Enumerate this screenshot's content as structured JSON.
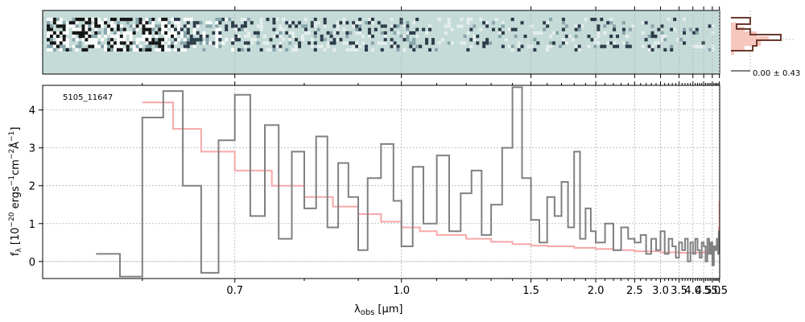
{
  "chart_data": {
    "type": "line",
    "object_label": "5105_11647",
    "xlabel_main": "λ",
    "xlabel_sub": "obs",
    "xlabel_unit": "[μm]",
    "ylabel": "f_λ [10^-20 ergs^-1 cm^-2 Å^-1]",
    "ylabel_parts": {
      "f": "f",
      "lambda_sub": "λ",
      "bracket_open": "[10",
      "exp1": "−20",
      "ergs": " ergs",
      "exp2": "−1",
      "cm": "cm",
      "exp3": "−2",
      "angstrom": "Å",
      "exp4": "−1",
      "bracket_close": "]"
    },
    "x_scale": "reciprocal",
    "xlim": [
      0.52,
      5.52
    ],
    "ylim": [
      -0.45,
      4.65
    ],
    "x_ticks": [
      0.7,
      1.0,
      1.5,
      2.0,
      2.5,
      3.0,
      3.5,
      4.0,
      4.5,
      5.0,
      5.5
    ],
    "x_tick_labels": [
      "0.7",
      "1.0",
      "1.5",
      "2.0",
      "2.5",
      "3.0",
      "3.5",
      "4.0",
      "4.5",
      "5.0",
      "5.5"
    ],
    "y_ticks": [
      0,
      1,
      2,
      3,
      4
    ],
    "y_tick_labels": [
      "0",
      "1",
      "2",
      "3",
      "4"
    ],
    "grid": true,
    "series": [
      {
        "role": "observed spectrum",
        "color": "#808080",
        "x": [
          0.56,
          0.58,
          0.6,
          0.62,
          0.64,
          0.66,
          0.68,
          0.7,
          0.72,
          0.74,
          0.76,
          0.78,
          0.8,
          0.82,
          0.84,
          0.86,
          0.88,
          0.9,
          0.92,
          0.95,
          0.98,
          1.0,
          1.03,
          1.06,
          1.1,
          1.14,
          1.18,
          1.22,
          1.26,
          1.3,
          1.35,
          1.4,
          1.45,
          1.5,
          1.55,
          1.6,
          1.65,
          1.7,
          1.75,
          1.8,
          1.85,
          1.9,
          1.95,
          2.0,
          2.1,
          2.2,
          2.3,
          2.4,
          2.5,
          2.6,
          2.7,
          2.8,
          2.9,
          3.0,
          3.1,
          3.2,
          3.3,
          3.4,
          3.5,
          3.6,
          3.7,
          3.8,
          3.9,
          4.0,
          4.1,
          4.2,
          4.3,
          4.4,
          4.5,
          4.6,
          4.7,
          4.8,
          4.9,
          5.0,
          5.1,
          5.2,
          5.3,
          5.4,
          5.45,
          5.5
        ],
        "y": [
          0.2,
          -0.4,
          3.8,
          4.5,
          2.0,
          -0.3,
          3.2,
          4.4,
          1.2,
          3.6,
          0.6,
          2.9,
          1.4,
          3.3,
          0.9,
          2.6,
          1.7,
          0.3,
          2.2,
          3.1,
          1.6,
          0.4,
          2.5,
          1.0,
          2.8,
          0.8,
          1.8,
          2.4,
          0.7,
          1.5,
          3.0,
          4.6,
          2.2,
          1.1,
          0.5,
          1.7,
          1.2,
          2.1,
          0.9,
          2.9,
          0.6,
          1.4,
          0.8,
          0.5,
          1.0,
          0.3,
          0.9,
          0.6,
          0.5,
          0.7,
          0.2,
          0.6,
          0.3,
          0.8,
          0.2,
          0.6,
          0.4,
          0.1,
          0.5,
          0.3,
          0.6,
          0.0,
          0.5,
          0.2,
          0.6,
          0.3,
          0.1,
          0.5,
          0.4,
          0.0,
          0.6,
          0.2,
          0.5,
          -0.1,
          0.4,
          0.3,
          0.6,
          0.2,
          0.8,
          0.3
        ]
      },
      {
        "role": "model",
        "color": "#f7a8a8",
        "x": [
          0.6,
          0.63,
          0.66,
          0.7,
          0.75,
          0.8,
          0.85,
          0.9,
          0.95,
          1.0,
          1.05,
          1.1,
          1.2,
          1.3,
          1.4,
          1.5,
          1.6,
          1.8,
          2.0,
          2.2,
          2.5,
          3.0,
          3.5,
          4.0,
          4.5,
          5.0,
          5.2,
          5.3,
          5.4,
          5.45,
          5.5
        ],
        "y": [
          4.2,
          3.5,
          2.9,
          2.4,
          2.0,
          1.7,
          1.45,
          1.25,
          1.05,
          0.9,
          0.8,
          0.7,
          0.6,
          0.52,
          0.46,
          0.42,
          0.4,
          0.36,
          0.33,
          0.3,
          0.27,
          0.24,
          0.23,
          0.23,
          0.25,
          0.3,
          0.4,
          0.5,
          0.6,
          0.9,
          1.6
        ]
      }
    ]
  },
  "histogram": {
    "annotation": "0.00 ± 0.43"
  }
}
